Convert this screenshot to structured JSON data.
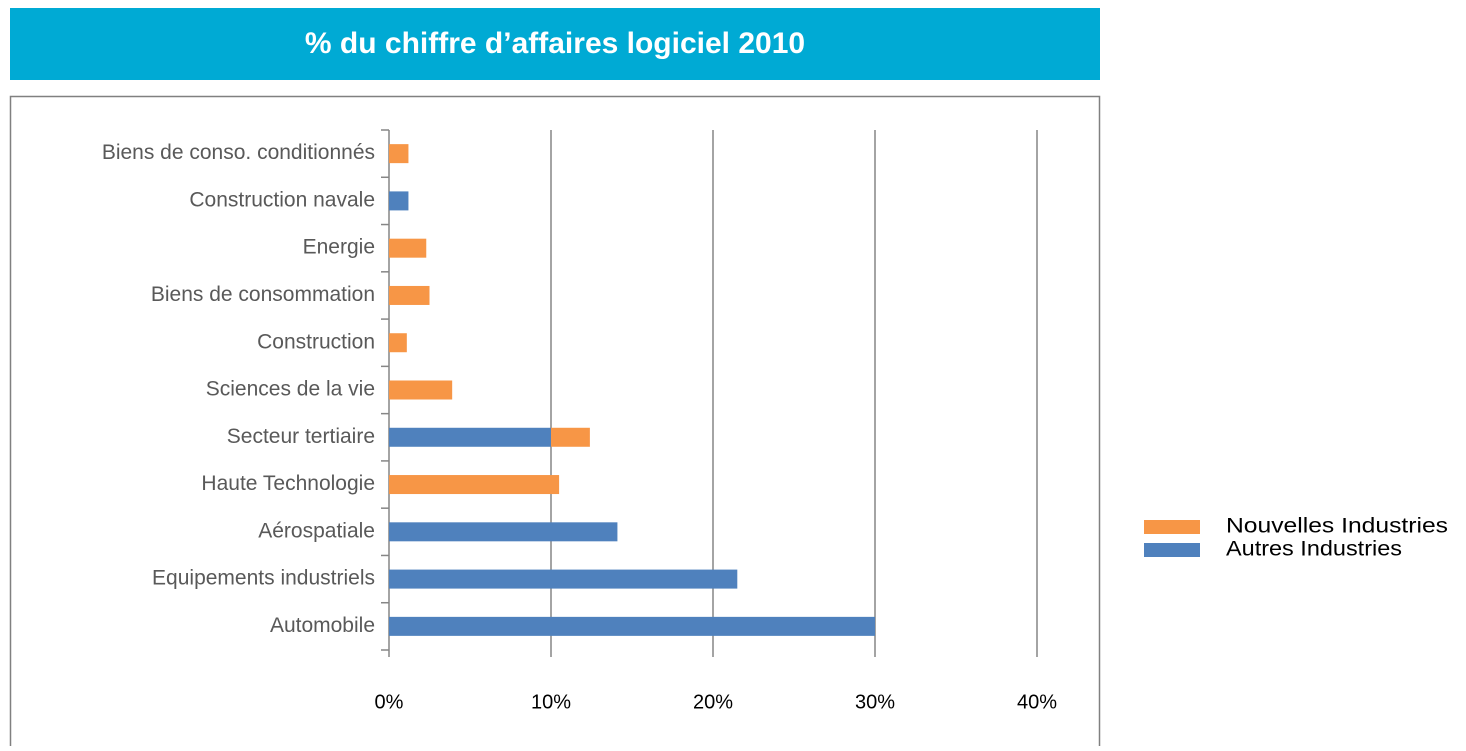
{
  "chart_data": {
    "type": "bar",
    "orientation": "horizontal",
    "stacked": true,
    "title": "% du chiffre d’affaires logiciel 2010",
    "categories": [
      "Biens de conso. conditionnés",
      "Construction navale",
      "Energie",
      "Biens de consommation",
      "Construction",
      "Sciences de la vie",
      "Secteur tertiaire",
      "Haute Technologie",
      "Aérospatiale",
      "Equipements industriels",
      "Automobile"
    ],
    "series": [
      {
        "name": "Nouvelles Industries",
        "color": "#f79646",
        "values": [
          1.2,
          null,
          2.3,
          2.5,
          1.1,
          3.9,
          2.4,
          10.5,
          null,
          null,
          null
        ]
      },
      {
        "name": "Autres Industries",
        "color": "#4f81bd",
        "values": [
          null,
          1.2,
          null,
          null,
          null,
          null,
          10,
          null,
          14.1,
          21.5,
          30
        ]
      }
    ],
    "xlim": [
      0,
      40
    ],
    "xticks": [
      {
        "value": 0,
        "label": "0%"
      },
      {
        "value": 10,
        "label": "10%"
      },
      {
        "value": 20,
        "label": "20%"
      },
      {
        "value": 30,
        "label": "30%"
      },
      {
        "value": 40,
        "label": "40%"
      }
    ],
    "grid": true,
    "legend": "right"
  }
}
